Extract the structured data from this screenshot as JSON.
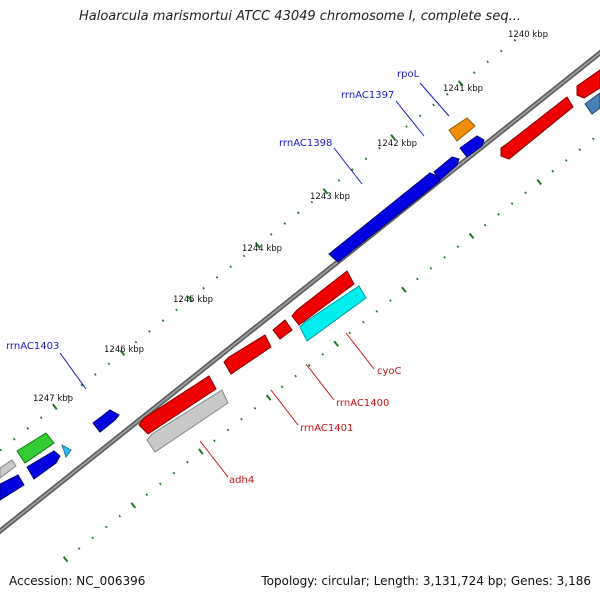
{
  "title": "Haloarcula marismortui ATCC 43049 chromosome I, complete seq...",
  "footer": {
    "accession": "Accession: NC_006396",
    "summary": "Topology: circular; Length: 3,131,724 bp; Genes: 3,186"
  },
  "colors": {
    "backbone": "#7a7a7a",
    "tick": "#1f7a1f",
    "forward_label": "#1a1acc",
    "reverse_label": "#cc1111"
  },
  "kbp_labels": [
    "1240 kbp",
    "1241 kbp",
    "1242 kbp",
    "1243 kbp",
    "1244 kbp",
    "1245 kbp",
    "1246 kbp",
    "1247 kbp"
  ],
  "gene_labels": {
    "forward": [
      "rpoL",
      "rrnAC1397",
      "rrnAC1398",
      "rrnAC1403"
    ],
    "reverse": [
      "cyoC",
      "rrnAC1400",
      "rrnAC1401",
      "adh4"
    ]
  }
}
